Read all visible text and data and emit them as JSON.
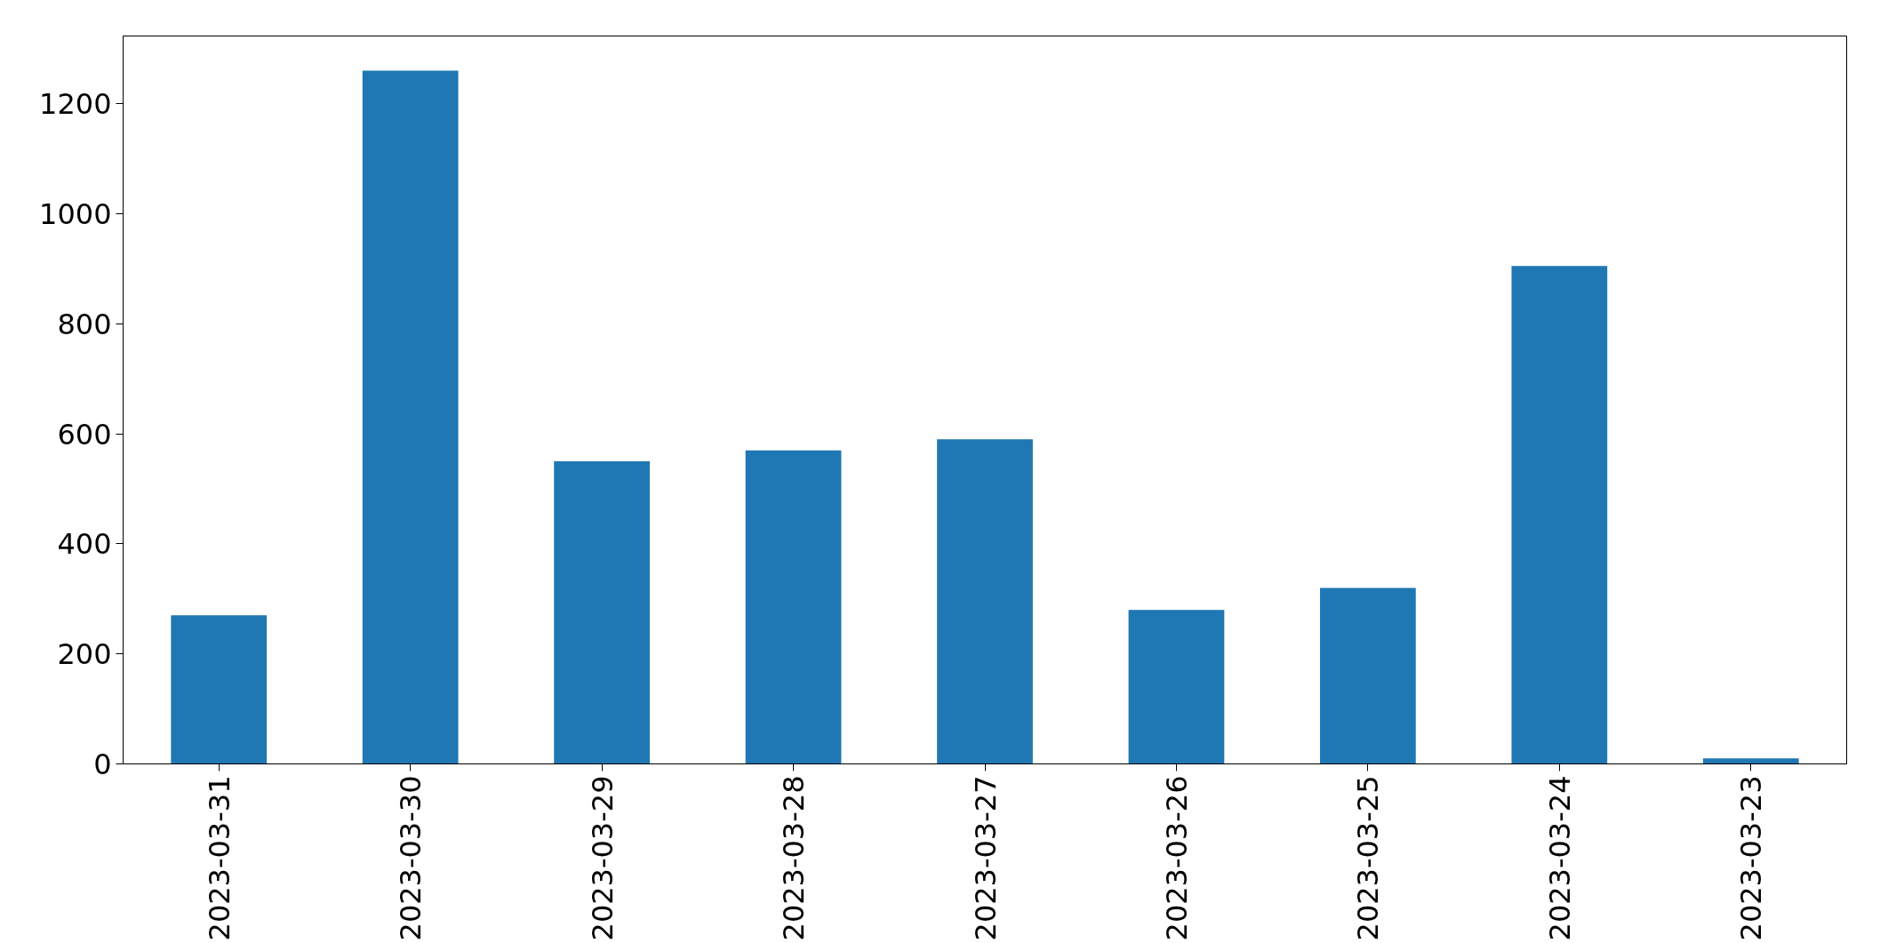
{
  "chart_data": {
    "type": "bar",
    "categories": [
      "2023-03-31",
      "2023-03-30",
      "2023-03-29",
      "2023-03-28",
      "2023-03-27",
      "2023-03-26",
      "2023-03-25",
      "2023-03-24",
      "2023-03-23"
    ],
    "values": [
      270,
      1260,
      550,
      570,
      590,
      280,
      320,
      905,
      10
    ],
    "color": "#1f77b4",
    "ylim": [
      0,
      1323
    ],
    "yticks": [
      0,
      200,
      400,
      600,
      800,
      1000,
      1200
    ],
    "grid": false
  }
}
